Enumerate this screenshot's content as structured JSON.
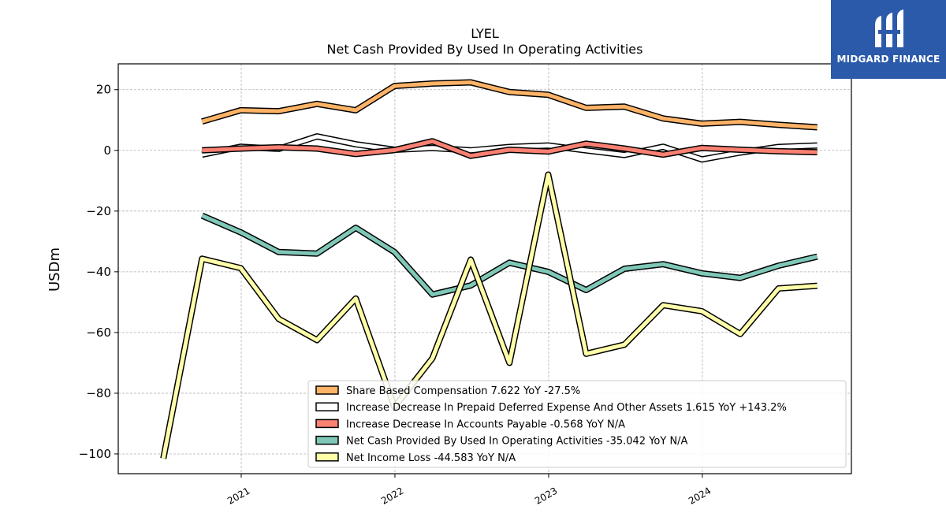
{
  "brand": {
    "name": "MIDGARD FINANCE",
    "logo_icon": "midgard-logo-icon",
    "color": "#2b5aab"
  },
  "chart_data": {
    "type": "line",
    "title": "LYEL",
    "subtitle": "Net Cash Provided By Used In Operating Activities",
    "ylabel": "USDm",
    "xlabel": "",
    "ylim": [
      -106.5,
      28.5
    ],
    "yticks": [
      20,
      0,
      -20,
      -40,
      -60,
      -80,
      -100
    ],
    "ytick_labels": [
      "20",
      "0",
      "−20",
      "−40",
      "−60",
      "−80",
      "−100"
    ],
    "xlim": [
      "2020-03-15",
      "2024-12-20"
    ],
    "xticks": [
      "2021-01-01",
      "2022-01-01",
      "2023-01-01",
      "2024-01-01"
    ],
    "xtick_labels": [
      "2021",
      "2022",
      "2023",
      "2024"
    ],
    "grid": true,
    "legend_position": "lower-right",
    "series": [
      {
        "name": "Share Based Compensation",
        "legend_label": "Share Based Compensation  7.622 YoY -27.5%",
        "color": "#ffb366",
        "x": [
          "2020-09-30",
          "2020-12-31",
          "2021-03-31",
          "2021-06-30",
          "2021-09-30",
          "2021-12-31",
          "2022-03-31",
          "2022-06-30",
          "2022-09-30",
          "2022-12-31",
          "2023-03-31",
          "2023-06-30",
          "2023-09-30",
          "2023-12-31",
          "2024-03-31",
          "2024-06-30",
          "2024-09-30"
        ],
        "values": [
          9.5,
          13.2,
          12.9,
          15.3,
          13.2,
          21.2,
          22.0,
          22.4,
          19.2,
          18.3,
          14.0,
          14.4,
          10.5,
          8.8,
          9.4,
          8.4,
          7.6
        ]
      },
      {
        "name": "Increase Decrease In Prepaid Deferred Expense And Other Assets",
        "legend_label": "Increase Decrease In Prepaid Deferred Expense And Other Assets  1.615 YoY +143.2%",
        "color": "#ffffff",
        "x": [
          "2020-09-30",
          "2020-12-31",
          "2021-03-31",
          "2021-06-30",
          "2021-09-30",
          "2021-12-31",
          "2022-03-31",
          "2022-06-30",
          "2022-09-30",
          "2022-12-31",
          "2023-03-31",
          "2023-06-30",
          "2023-09-30",
          "2023-12-31",
          "2024-03-31",
          "2024-06-30",
          "2024-09-30"
        ],
        "values": [
          -1.4,
          1.2,
          0.5,
          4.6,
          2.0,
          0.2,
          0.8,
          0.0,
          1.1,
          1.6,
          0.0,
          -1.5,
          1.2,
          -3.0,
          -0.7,
          1.1,
          1.6
        ]
      },
      {
        "name": "Increase Decrease In Accounts Payable",
        "legend_label": "Increase Decrease In Accounts Payable  -0.568 YoY N/A",
        "color": "#fa8072",
        "x": [
          "2020-09-30",
          "2020-12-31",
          "2021-03-31",
          "2021-06-30",
          "2021-09-30",
          "2021-12-31",
          "2022-03-31",
          "2022-06-30",
          "2022-09-30",
          "2022-12-31",
          "2023-03-31",
          "2023-06-30",
          "2023-09-30",
          "2023-12-31",
          "2024-03-31",
          "2024-06-30",
          "2024-09-30"
        ],
        "values": [
          0.0,
          0.6,
          1.0,
          0.6,
          -1.2,
          0.1,
          3.0,
          -1.8,
          0.2,
          -0.4,
          2.2,
          0.6,
          -1.4,
          0.8,
          0.2,
          -0.3,
          -0.6
        ]
      },
      {
        "name": "Net Cash Provided By Used In Operating Activities",
        "legend_label": "Net Cash Provided By Used In Operating Activities  -35.042 YoY N/A",
        "color": "#7fc8b8",
        "x": [
          "2020-09-30",
          "2020-12-31",
          "2021-03-31",
          "2021-06-30",
          "2021-09-30",
          "2021-12-31",
          "2022-03-31",
          "2022-06-30",
          "2022-09-30",
          "2022-12-31",
          "2023-03-31",
          "2023-06-30",
          "2023-09-30",
          "2023-12-31",
          "2024-03-31",
          "2024-06-30",
          "2024-09-30"
        ],
        "values": [
          -21.5,
          -27.0,
          -33.5,
          -34.0,
          -25.5,
          -33.5,
          -47.5,
          -44.5,
          -37.0,
          -40.0,
          -46.0,
          -39.0,
          -37.5,
          -40.5,
          -42.0,
          -38.0,
          -35.0
        ]
      },
      {
        "name": "Net Income Loss",
        "legend_label": "Net Income Loss  -44.583 YoY N/A",
        "color": "#ffffaa",
        "x": [
          "2020-06-30",
          "2020-09-30",
          "2020-12-31",
          "2021-03-31",
          "2021-06-30",
          "2021-09-30",
          "2021-12-31",
          "2022-03-31",
          "2022-06-30",
          "2022-09-30",
          "2022-12-31",
          "2023-03-31",
          "2023-06-30",
          "2023-09-30",
          "2023-12-31",
          "2024-03-31",
          "2024-06-30",
          "2024-09-30"
        ],
        "values": [
          -101.5,
          -35.7,
          -38.8,
          -55.5,
          -62.5,
          -48.8,
          -84.5,
          -68.5,
          -36.0,
          -70.0,
          -8.0,
          -67.0,
          -64.0,
          -51.0,
          -53.0,
          -60.5,
          -45.5,
          -44.6
        ]
      }
    ]
  }
}
